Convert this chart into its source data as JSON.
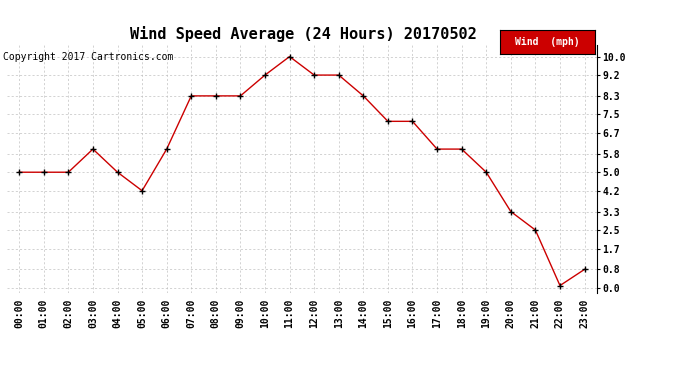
{
  "title": "Wind Speed Average (24 Hours) 20170502",
  "copyright_text": "Copyright 2017 Cartronics.com",
  "legend_label": "Wind  (mph)",
  "hours": [
    "00:00",
    "01:00",
    "02:00",
    "03:00",
    "04:00",
    "05:00",
    "06:00",
    "07:00",
    "08:00",
    "09:00",
    "10:00",
    "11:00",
    "12:00",
    "13:00",
    "14:00",
    "15:00",
    "16:00",
    "17:00",
    "18:00",
    "19:00",
    "20:00",
    "21:00",
    "22:00",
    "23:00"
  ],
  "wind_values": [
    5.0,
    5.0,
    5.0,
    6.0,
    5.0,
    4.2,
    6.0,
    8.3,
    8.3,
    8.3,
    9.2,
    10.0,
    9.2,
    9.2,
    8.3,
    7.2,
    7.2,
    6.0,
    6.0,
    5.0,
    3.3,
    2.5,
    0.1,
    0.8
  ],
  "yticks": [
    0.0,
    0.8,
    1.7,
    2.5,
    3.3,
    4.2,
    5.0,
    5.8,
    6.7,
    7.5,
    8.3,
    9.2,
    10.0
  ],
  "line_color": "#cc0000",
  "marker_color": "#000000",
  "legend_bg_color": "#cc0000",
  "legend_text_color": "#ffffff",
  "background_color": "#ffffff",
  "grid_color": "#c0c0c0",
  "title_fontsize": 11,
  "copyright_fontsize": 7,
  "tick_fontsize": 7,
  "ylim": [
    -0.2,
    10.5
  ],
  "xlim": [
    -0.5,
    23.5
  ]
}
